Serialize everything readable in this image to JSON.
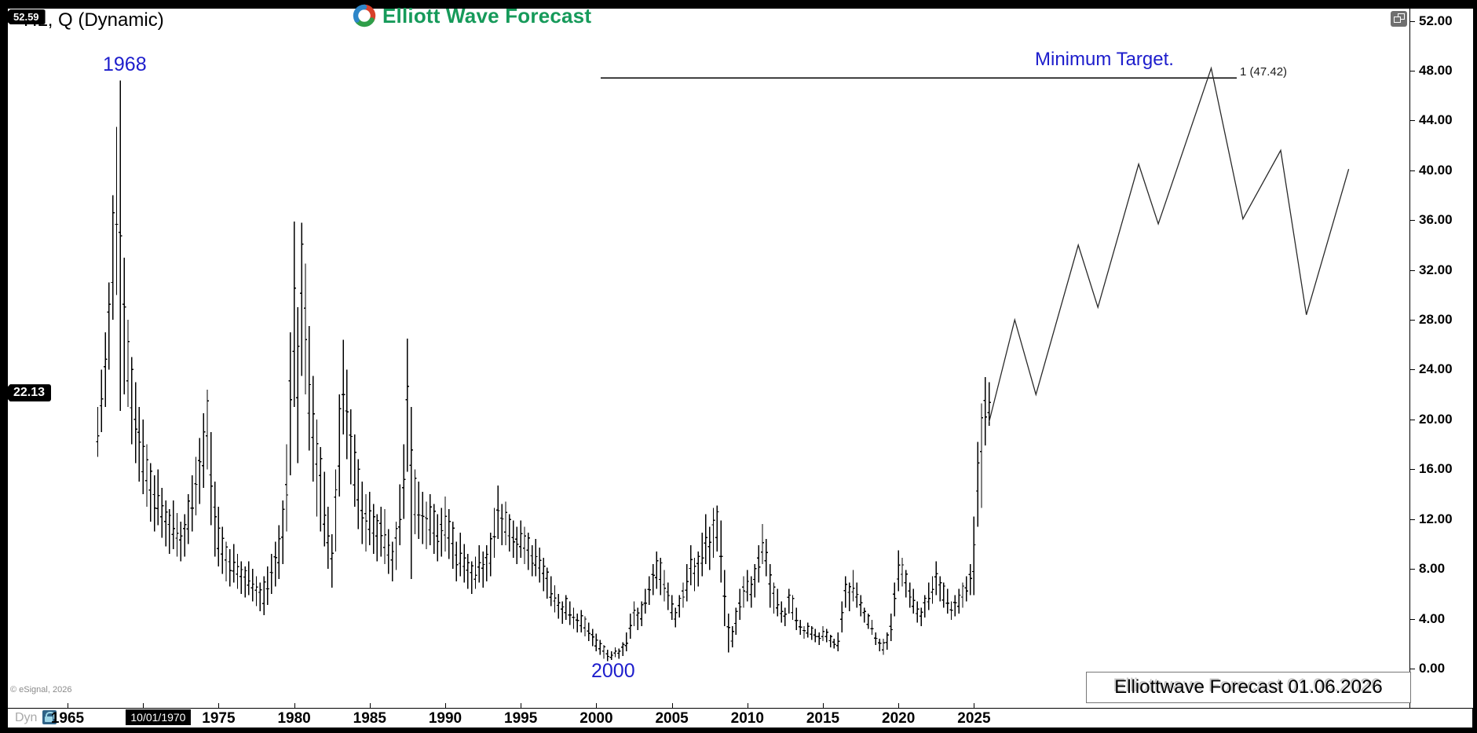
{
  "window": {
    "title": "* HL, Q (Dynamic)",
    "brand": "Elliott Wave Forecast",
    "restore_icon": "restore-window"
  },
  "footer": {
    "copyright": "© eSignal, 2026",
    "mode_label": "Dyn",
    "watermark": "Elliottwave Forecast  01.06.2026"
  },
  "chart_data": {
    "type": "bar",
    "subtype": "ohlc-quarterly-with-forecast",
    "title": "* HL, Q (Dynamic)",
    "xlabel": "",
    "ylabel": "",
    "ylim": [
      0,
      53
    ],
    "grid": false,
    "annotations": {
      "peak_label": "1968",
      "low_label": "2000",
      "target_label": "Minimum Target.",
      "target_level_label": "1 (47.42)"
    },
    "y_axis": {
      "ticks": [
        {
          "value": 52,
          "label": "52.00"
        },
        {
          "value": 48,
          "label": "48.00"
        },
        {
          "value": 44,
          "label": "44.00"
        },
        {
          "value": 40,
          "label": "40.00"
        },
        {
          "value": 36,
          "label": "36.00"
        },
        {
          "value": 32,
          "label": "32.00"
        },
        {
          "value": 28,
          "label": "28.00"
        },
        {
          "value": 24,
          "label": "24.00"
        },
        {
          "value": 20,
          "label": "20.00"
        },
        {
          "value": 16,
          "label": "16.00"
        },
        {
          "value": 12,
          "label": "12.00"
        },
        {
          "value": 8,
          "label": "8.00"
        },
        {
          "value": 4,
          "label": "4.00"
        },
        {
          "value": 0,
          "label": "0.00"
        }
      ],
      "high_badge": {
        "text": "52.59",
        "value": 52.59
      },
      "last_price_badge": {
        "text": "22.13",
        "value": 22.13
      }
    },
    "x_axis": {
      "tick_years": [
        1965,
        1970,
        1975,
        1980,
        1985,
        1990,
        1995,
        2000,
        2005,
        2010,
        2015,
        2020,
        2025
      ],
      "labeled_years": [
        1965,
        1975,
        1980,
        1985,
        1990,
        1995,
        2000,
        2005,
        2010,
        2015,
        2020,
        2025
      ],
      "date_badge": {
        "text": "10/01/1970",
        "at_year": 1971
      }
    },
    "target_line": {
      "price": 47.42,
      "from_year": 2000.3,
      "to_year": 2042.4
    },
    "forecast_line": {
      "points_year_price": [
        [
          2026.0,
          19.8
        ],
        [
          2027.7,
          28.0
        ],
        [
          2029.1,
          22.0
        ],
        [
          2031.9,
          34.0
        ],
        [
          2033.2,
          29.0
        ],
        [
          2035.9,
          40.5
        ],
        [
          2037.2,
          35.7
        ],
        [
          2040.7,
          48.2
        ],
        [
          2042.8,
          36.1
        ],
        [
          2045.3,
          41.6
        ],
        [
          2047.0,
          28.4
        ],
        [
          2049.8,
          40.1
        ]
      ]
    },
    "bars": {
      "start_year": 1967.0,
      "step_years": 0.25,
      "format": "[high, low]",
      "values": [
        [
          21,
          17
        ],
        [
          24,
          19
        ],
        [
          27,
          21
        ],
        [
          31,
          24
        ],
        [
          38,
          28
        ],
        [
          43.5,
          30
        ],
        [
          47.2,
          20.7
        ],
        [
          33,
          22
        ],
        [
          28,
          21
        ],
        [
          25,
          18
        ],
        [
          23,
          16.5
        ],
        [
          21,
          15
        ],
        [
          20,
          14
        ],
        [
          18,
          13
        ],
        [
          16.5,
          11.8
        ],
        [
          15.5,
          11
        ],
        [
          16,
          11.5
        ],
        [
          14.5,
          10.5
        ],
        [
          13.5,
          9.8
        ],
        [
          12.8,
          9.2
        ],
        [
          13.5,
          9.6
        ],
        [
          12.5,
          9
        ],
        [
          11.8,
          8.6
        ],
        [
          12.4,
          9
        ],
        [
          14,
          10
        ],
        [
          15.5,
          11
        ],
        [
          17,
          12.3
        ],
        [
          18.5,
          13.2
        ],
        [
          20.5,
          14.5
        ],
        [
          22.4,
          16
        ],
        [
          19,
          11.5
        ],
        [
          15,
          9
        ],
        [
          13,
          8.2
        ],
        [
          11.4,
          7.6
        ],
        [
          10.2,
          7
        ],
        [
          9.6,
          6.6
        ],
        [
          10,
          6.9
        ],
        [
          9.2,
          6.4
        ],
        [
          8.6,
          6
        ],
        [
          8.2,
          5.7
        ],
        [
          8.6,
          5.9
        ],
        [
          8,
          5.4
        ],
        [
          7.4,
          5
        ],
        [
          6.9,
          4.6
        ],
        [
          7.4,
          4.3
        ],
        [
          8.2,
          5.1
        ],
        [
          9.2,
          6
        ],
        [
          10.2,
          6.6
        ],
        [
          11.5,
          7.2
        ],
        [
          13.5,
          8.4
        ],
        [
          18,
          11
        ],
        [
          27,
          15.5
        ],
        [
          35.9,
          21
        ],
        [
          29,
          16.5
        ],
        [
          35.8,
          23.5
        ],
        [
          32.5,
          22
        ],
        [
          27.5,
          17.5
        ],
        [
          23.5,
          15
        ],
        [
          20,
          12.2
        ],
        [
          17.8,
          11
        ],
        [
          15.8,
          9.8
        ],
        [
          13,
          8
        ],
        [
          10.8,
          6.5
        ],
        [
          16,
          9.4
        ],
        [
          22,
          13.8
        ],
        [
          26.4,
          18.8
        ],
        [
          24,
          16.8
        ],
        [
          20.8,
          14.8
        ],
        [
          18.8,
          13
        ],
        [
          16.8,
          11.2
        ],
        [
          15,
          10
        ],
        [
          14,
          9.4
        ],
        [
          14.2,
          9.9
        ],
        [
          13.2,
          9.2
        ],
        [
          12.4,
          8.6
        ],
        [
          13,
          9
        ],
        [
          12.8,
          8.4
        ],
        [
          11.2,
          7.6
        ],
        [
          10.2,
          7
        ],
        [
          11.8,
          7.9
        ],
        [
          14.8,
          9.9
        ],
        [
          18,
          12
        ],
        [
          26.5,
          15.8
        ],
        [
          21,
          7.2
        ],
        [
          16,
          10.8
        ],
        [
          15,
          10.4
        ],
        [
          14.2,
          10
        ],
        [
          13.4,
          9.6
        ],
        [
          14,
          9.9
        ],
        [
          13.2,
          9.2
        ],
        [
          12.4,
          8.6
        ],
        [
          12.9,
          9
        ],
        [
          13.8,
          9.4
        ],
        [
          12.8,
          8.8
        ],
        [
          11.8,
          8
        ],
        [
          10.2,
          7
        ],
        [
          10.9,
          7.4
        ],
        [
          10,
          6.9
        ],
        [
          9.2,
          6.4
        ],
        [
          8.6,
          6
        ],
        [
          9,
          6.4
        ],
        [
          9.9,
          6.9
        ],
        [
          9.4,
          6.5
        ],
        [
          9.9,
          7
        ],
        [
          10.9,
          7.4
        ],
        [
          12.9,
          8.9
        ],
        [
          14.7,
          10.4
        ],
        [
          13.2,
          9.9
        ],
        [
          13.4,
          9.9
        ],
        [
          12.4,
          9.4
        ],
        [
          11.9,
          8.9
        ],
        [
          11.4,
          8.4
        ],
        [
          11.9,
          8.9
        ],
        [
          11.4,
          8.4
        ],
        [
          10.9,
          7.9
        ],
        [
          9.9,
          7.4
        ],
        [
          10.4,
          7.4
        ],
        [
          9.7,
          6.9
        ],
        [
          8.9,
          6.2
        ],
        [
          8.1,
          5.6
        ],
        [
          7.4,
          5
        ],
        [
          6.7,
          4.5
        ],
        [
          6,
          4
        ],
        [
          5.4,
          3.6
        ],
        [
          5.9,
          3.9
        ],
        [
          5.4,
          3.5
        ],
        [
          4.9,
          3.2
        ],
        [
          4.4,
          2.9
        ],
        [
          4.7,
          2.9
        ],
        [
          4.2,
          2.6
        ],
        [
          3.7,
          2.2
        ],
        [
          3.2,
          1.8
        ],
        [
          2.8,
          1.4
        ],
        [
          2.3,
          1.1
        ],
        [
          1.9,
          0.8
        ],
        [
          1.5,
          0.6
        ],
        [
          1.4,
          0.7
        ],
        [
          1.7,
          0.9
        ],
        [
          1.6,
          0.8
        ],
        [
          2.1,
          1
        ],
        [
          2.9,
          1.4
        ],
        [
          4.4,
          2.4
        ],
        [
          5.4,
          3.4
        ],
        [
          4.9,
          3.1
        ],
        [
          5.4,
          3.4
        ],
        [
          6.4,
          4.4
        ],
        [
          7.4,
          5.1
        ],
        [
          8.4,
          5.9
        ],
        [
          9.4,
          6.4
        ],
        [
          8.9,
          5.9
        ],
        [
          7.9,
          5.4
        ],
        [
          6.9,
          4.7
        ],
        [
          5.9,
          3.9
        ],
        [
          4.9,
          3.3
        ],
        [
          5.9,
          4.1
        ],
        [
          6.9,
          4.9
        ],
        [
          8.4,
          5.4
        ],
        [
          9.9,
          6.7
        ],
        [
          8.9,
          6.2
        ],
        [
          9.4,
          6.6
        ],
        [
          10.9,
          7.4
        ],
        [
          12.4,
          8.4
        ],
        [
          11.4,
          7.9
        ],
        [
          12.9,
          8.9
        ],
        [
          13.1,
          9.4
        ],
        [
          11.9,
          6.9
        ],
        [
          7.9,
          3.4
        ],
        [
          4.4,
          1.3
        ],
        [
          3.4,
          1.7
        ],
        [
          4.9,
          2.7
        ],
        [
          6.4,
          3.9
        ],
        [
          7.4,
          4.9
        ],
        [
          7.9,
          5.4
        ],
        [
          7.4,
          4.9
        ],
        [
          8.4,
          5.7
        ],
        [
          9.9,
          6.9
        ],
        [
          11.6,
          8.4
        ],
        [
          10.4,
          7.4
        ],
        [
          8.4,
          4.9
        ],
        [
          6.9,
          4.4
        ],
        [
          6.4,
          4.2
        ],
        [
          5.4,
          3.7
        ],
        [
          4.9,
          3.4
        ],
        [
          6.4,
          4.4
        ],
        [
          5.9,
          3.9
        ],
        [
          4.9,
          3.1
        ],
        [
          3.9,
          2.7
        ],
        [
          3.4,
          2.4
        ],
        [
          3.7,
          2.5
        ],
        [
          3.4,
          2.3
        ],
        [
          3.2,
          2.1
        ],
        [
          2.9,
          1.9
        ],
        [
          3.4,
          2.2
        ],
        [
          3.2,
          2.1
        ],
        [
          2.7,
          1.7
        ],
        [
          2.4,
          1.6
        ],
        [
          2.9,
          1.4
        ],
        [
          5.4,
          2.9
        ],
        [
          7.4,
          4.9
        ],
        [
          6.9,
          4.6
        ],
        [
          7.9,
          5.4
        ],
        [
          6.9,
          4.9
        ],
        [
          5.9,
          4.2
        ],
        [
          4.9,
          3.7
        ],
        [
          4.4,
          3.2
        ],
        [
          3.9,
          2.7
        ],
        [
          2.9,
          1.9
        ],
        [
          2.4,
          1.4
        ],
        [
          2.4,
          1.1
        ],
        [
          2.9,
          1.5
        ],
        [
          4.4,
          2.2
        ],
        [
          6.9,
          4.2
        ],
        [
          9.5,
          6.2
        ],
        [
          8.9,
          6.6
        ],
        [
          7.9,
          5.7
        ],
        [
          6.9,
          4.9
        ],
        [
          6.4,
          4.4
        ],
        [
          5.4,
          3.7
        ],
        [
          4.9,
          3.4
        ],
        [
          5.9,
          4.1
        ],
        [
          6.9,
          4.7
        ],
        [
          7.4,
          5.2
        ],
        [
          8.6,
          5.9
        ],
        [
          7.4,
          5.4
        ],
        [
          6.9,
          4.9
        ],
        [
          6.4,
          4.4
        ],
        [
          5.4,
          3.9
        ],
        [
          5.9,
          4.2
        ],
        [
          6.4,
          4.4
        ],
        [
          6.9,
          4.9
        ],
        [
          7.4,
          5.4
        ],
        [
          8.4,
          5.9
        ],
        [
          12.2,
          5.9
        ],
        [
          18.2,
          11.4
        ],
        [
          21.3,
          12.9
        ],
        [
          23.4,
          17.9
        ],
        [
          23.0,
          19.5
        ]
      ]
    },
    "colors": {
      "bars": "#000000",
      "forecast": "#2a2a2a",
      "target_line": "#000000",
      "annotation_blue": "#1d1dcc",
      "brand_green": "#169a5a",
      "badge_bg": "#000000",
      "badge_text": "#ffffff"
    }
  }
}
